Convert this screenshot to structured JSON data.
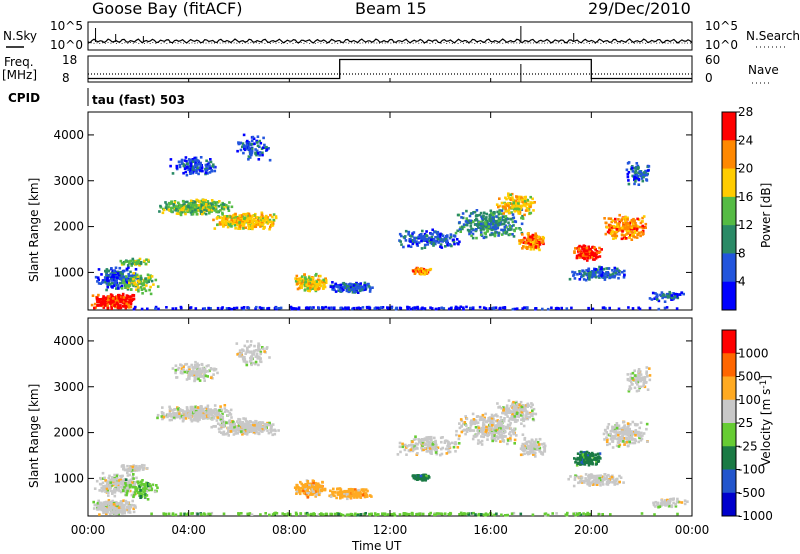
{
  "header": {
    "station": "Goose Bay (fitACF)",
    "beam": "Beam 15",
    "date": "29/Dec/2010"
  },
  "left_labels": {
    "nsky": "N.Sky",
    "freq": "Freq.",
    "freq_unit": "[MHz]",
    "cpid": "CPID"
  },
  "right_labels": {
    "nsearch": "N.Search",
    "nave": "Nave"
  },
  "cpid_text": "tau (fast) 503",
  "chart_data": [
    {
      "type": "line",
      "panel": "noise",
      "series": [
        {
          "name": "N.Sky"
        },
        {
          "name": "N.Search"
        }
      ],
      "left_ticks": [
        "10^5",
        "10^0"
      ],
      "right_ticks": [
        "10^5",
        "10^0"
      ]
    },
    {
      "type": "line",
      "panel": "frequency",
      "series": [
        {
          "name": "Freq."
        },
        {
          "name": "Nave"
        }
      ],
      "left_ticks": [
        "18",
        "8"
      ],
      "right_ticks": [
        "60",
        "0"
      ],
      "nave_step": [
        {
          "from_hour": 0,
          "to_hour": 10,
          "level": 8
        },
        {
          "from_hour": 10,
          "to_hour": 20,
          "level": 52
        },
        {
          "from_hour": 20,
          "to_hour": 24,
          "level": 8
        }
      ]
    },
    {
      "type": "heatmap",
      "panel": "power",
      "ylabel": "Slant Range [km]",
      "yticks": [
        "1000",
        "2000",
        "3000",
        "4000"
      ],
      "ylim": [
        180,
        4500
      ],
      "colorbar_label": "Power [dB]",
      "colorbar_ticks": [
        "4",
        "8",
        "12",
        "16",
        "20",
        "24",
        "28"
      ],
      "colorbar_colors": [
        "#0000ff",
        "#2255dd",
        "#2a8a66",
        "#55bb44",
        "#ffcc00",
        "#ff8800",
        "#ff0000"
      ]
    },
    {
      "type": "heatmap",
      "panel": "velocity",
      "ylabel": "Slant Range [km]",
      "yticks": [
        "1000",
        "2000",
        "3000",
        "4000"
      ],
      "ylim": [
        180,
        4500
      ],
      "colorbar_label": "Velocity [m s",
      "colorbar_label_sup": "-1",
      "colorbar_label_end": "]",
      "colorbar_ticks": [
        "1000",
        "500",
        "100",
        "25",
        "-25",
        "-100",
        "-500",
        "-1000"
      ],
      "colorbar_colors": [
        "#0000cc",
        "#2255cc",
        "#1a7a44",
        "#66cc33",
        "#c8c8c8",
        "#ffaa22",
        "#ff6600",
        "#ff0000"
      ]
    }
  ],
  "time_axis": {
    "label": "Time UT",
    "ticks": [
      "00:00",
      "04:00",
      "08:00",
      "12:00",
      "16:00",
      "20:00",
      "00:00"
    ]
  }
}
